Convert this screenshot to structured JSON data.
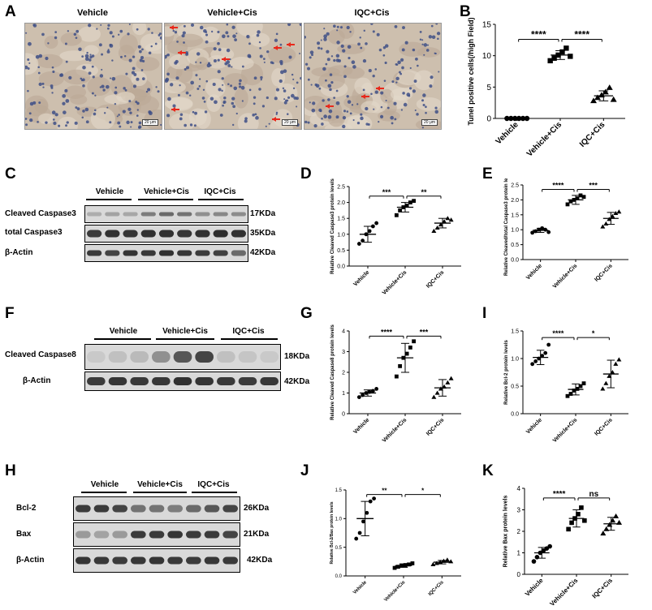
{
  "panels": {
    "A": {
      "letter": "A",
      "titles": [
        "Vehicle",
        "Vehicle+Cis",
        "IQC+Cis"
      ],
      "scale": "20 μm"
    },
    "B": {
      "letter": "B"
    },
    "C": {
      "letter": "C",
      "groups": [
        "Vehicle",
        "Vehicle+Cis",
        "IQC+Cis"
      ],
      "rows": [
        {
          "label": "Cleaved Caspase3",
          "kda": "17KDa"
        },
        {
          "label": "total Caspase3",
          "kda": "35KDa"
        },
        {
          "label": "β-Actin",
          "kda": "42KDa"
        }
      ]
    },
    "D": {
      "letter": "D"
    },
    "E": {
      "letter": "E"
    },
    "F": {
      "letter": "F",
      "groups": [
        "Vehicle",
        "Vehicle+Cis",
        "IQC+Cis"
      ],
      "rows": [
        {
          "label": "Cleaved Caspase8",
          "kda": "18KDa"
        },
        {
          "label": "β-Actin",
          "kda": "42KDa"
        }
      ]
    },
    "G": {
      "letter": "G"
    },
    "I": {
      "letter": "I"
    },
    "H": {
      "letter": "H",
      "groups": [
        "Vehicle",
        "Vehicle+Cis",
        "IQC+Cis"
      ],
      "rows": [
        {
          "label": "Bcl-2",
          "kda": "26KDa"
        },
        {
          "label": "Bax",
          "kda": "21KDa"
        },
        {
          "label": "β-Actin",
          "kda": "42KDa"
        }
      ]
    },
    "J": {
      "letter": "J"
    },
    "K": {
      "letter": "K"
    }
  },
  "colors": {
    "tissue": "#cdbfae",
    "nuclei": "#3e4f86",
    "arrow": "#e8281b",
    "blot_bg": "#d9d9d9",
    "band": "#2a2a2a"
  },
  "chart_data": [
    {
      "id": "B",
      "type": "scatter",
      "ylabel": "Tunel positive cells(/high Field)",
      "categories": [
        "Vehicle",
        "Vehicle+Cis",
        "IQC+Cis"
      ],
      "ylim": [
        0,
        15
      ],
      "yticks": [
        0,
        5,
        10,
        15
      ],
      "series": [
        {
          "values": [
            0,
            0,
            0,
            0,
            0,
            0
          ],
          "mean": 0,
          "sd": 0,
          "marker": "circle"
        },
        {
          "values": [
            9.2,
            9.6,
            10.1,
            10.6,
            11.2,
            9.9
          ],
          "mean": 10.1,
          "sd": 0.7,
          "marker": "square"
        },
        {
          "values": [
            2.8,
            3.3,
            3.7,
            4.2,
            4.9,
            3.0
          ],
          "mean": 3.6,
          "sd": 0.8,
          "marker": "triangle"
        }
      ],
      "sig": [
        {
          "from": 0,
          "to": 1,
          "label": "****",
          "y": 12.6
        },
        {
          "from": 1,
          "to": 2,
          "label": "****",
          "y": 12.6
        }
      ]
    },
    {
      "id": "D",
      "type": "scatter",
      "ylabel": "Relative Cleaved Caspase3 protein levels",
      "categories": [
        "Vehicle",
        "Vehicle+Cis",
        "IQC+Cis"
      ],
      "ylim": [
        0,
        2.5
      ],
      "yticks": [
        0.0,
        0.5,
        1.0,
        1.5,
        2.0,
        2.5
      ],
      "series": [
        {
          "values": [
            0.7,
            0.8,
            1.0,
            1.1,
            1.25,
            1.35
          ],
          "mean": 1.0,
          "sd": 0.25,
          "marker": "circle"
        },
        {
          "values": [
            1.6,
            1.75,
            1.85,
            1.9,
            2.0,
            2.05
          ],
          "mean": 1.85,
          "sd": 0.15,
          "marker": "square"
        },
        {
          "values": [
            1.1,
            1.2,
            1.3,
            1.4,
            1.5,
            1.45
          ],
          "mean": 1.35,
          "sd": 0.15,
          "marker": "triangle"
        }
      ],
      "sig": [
        {
          "from": 0,
          "to": 1,
          "label": "***",
          "y": 2.2
        },
        {
          "from": 1,
          "to": 2,
          "label": "**",
          "y": 2.2
        }
      ]
    },
    {
      "id": "E",
      "type": "scatter",
      "ylabel": "Relative Cleaved/total Caspase3 protein levels",
      "categories": [
        "Vehicle",
        "Vehicle+Cis",
        "IQC+Cis"
      ],
      "ylim": [
        0,
        2.5
      ],
      "yticks": [
        0.0,
        0.5,
        1.0,
        1.5,
        2.0,
        2.5
      ],
      "series": [
        {
          "values": [
            0.9,
            0.95,
            1.0,
            1.05,
            1.0,
            0.92
          ],
          "mean": 0.98,
          "sd": 0.07,
          "marker": "circle"
        },
        {
          "values": [
            1.85,
            1.95,
            2.0,
            2.05,
            2.15,
            2.1
          ],
          "mean": 2.0,
          "sd": 0.15,
          "marker": "square"
        },
        {
          "values": [
            1.1,
            1.2,
            1.35,
            1.45,
            1.55,
            1.6
          ],
          "mean": 1.38,
          "sd": 0.2,
          "marker": "triangle"
        }
      ],
      "sig": [
        {
          "from": 0,
          "to": 1,
          "label": "****",
          "y": 2.35
        },
        {
          "from": 1,
          "to": 2,
          "label": "***",
          "y": 2.35
        }
      ]
    },
    {
      "id": "G",
      "type": "scatter",
      "ylabel": "Relative Cleaved Caspase8 protein levels",
      "categories": [
        "Vehicle",
        "Vehicle+Cis",
        "IQC+Cis"
      ],
      "ylim": [
        0,
        4
      ],
      "yticks": [
        0,
        1,
        2,
        3,
        4
      ],
      "series": [
        {
          "values": [
            0.8,
            0.9,
            1.0,
            1.05,
            1.1,
            1.2
          ],
          "mean": 1.0,
          "sd": 0.15,
          "marker": "circle"
        },
        {
          "values": [
            1.8,
            2.3,
            2.7,
            2.9,
            3.2,
            3.5
          ],
          "mean": 2.7,
          "sd": 0.7,
          "marker": "square"
        },
        {
          "values": [
            0.8,
            1.0,
            1.2,
            1.3,
            1.5,
            1.7
          ],
          "mean": 1.25,
          "sd": 0.4,
          "marker": "triangle"
        }
      ],
      "sig": [
        {
          "from": 0,
          "to": 1,
          "label": "****",
          "y": 3.75
        },
        {
          "from": 1,
          "to": 2,
          "label": "***",
          "y": 3.75
        }
      ]
    },
    {
      "id": "I",
      "type": "scatter",
      "ylabel": "Relative Bcl-2 protein levels",
      "categories": [
        "Vehicle",
        "Vehicle+Cis",
        "IQC+Cis"
      ],
      "ylim": [
        0,
        1.5
      ],
      "yticks": [
        0.0,
        0.5,
        1.0,
        1.5
      ],
      "series": [
        {
          "values": [
            0.9,
            0.95,
            1.0,
            1.05,
            1.1,
            1.25
          ],
          "mean": 1.02,
          "sd": 0.13,
          "marker": "circle"
        },
        {
          "values": [
            0.32,
            0.36,
            0.42,
            0.45,
            0.5,
            0.55
          ],
          "mean": 0.44,
          "sd": 0.1,
          "marker": "square"
        },
        {
          "values": [
            0.45,
            0.55,
            0.68,
            0.75,
            0.9,
            0.98
          ],
          "mean": 0.72,
          "sd": 0.25,
          "marker": "triangle"
        }
      ],
      "sig": [
        {
          "from": 0,
          "to": 1,
          "label": "****",
          "y": 1.38
        },
        {
          "from": 1,
          "to": 2,
          "label": "*",
          "y": 1.38
        }
      ]
    },
    {
      "id": "J",
      "type": "scatter",
      "ylabel": "Relative Bcl-2/Bax protein levels",
      "categories": [
        "Vehicle",
        "Vehicle+Cis",
        "IQC+Cis"
      ],
      "ylim": [
        0,
        1.5
      ],
      "yticks": [
        0.0,
        0.5,
        1.0,
        1.5
      ],
      "series": [
        {
          "values": [
            0.65,
            0.75,
            0.95,
            1.1,
            1.3,
            1.35
          ],
          "mean": 1.0,
          "sd": 0.3,
          "marker": "circle"
        },
        {
          "values": [
            0.14,
            0.16,
            0.18,
            0.19,
            0.2,
            0.22
          ],
          "mean": 0.18,
          "sd": 0.03,
          "marker": "square"
        },
        {
          "values": [
            0.2,
            0.22,
            0.24,
            0.26,
            0.28,
            0.25
          ],
          "mean": 0.24,
          "sd": 0.03,
          "marker": "triangle"
        }
      ],
      "sig": [
        {
          "from": 0,
          "to": 1,
          "label": "**",
          "y": 1.42
        },
        {
          "from": 1,
          "to": 2,
          "label": "*",
          "y": 1.42
        }
      ]
    },
    {
      "id": "K",
      "type": "scatter",
      "ylabel": "Relative Bax protein levels",
      "categories": [
        "Vehicle",
        "Vehicle+Cis",
        "IQC+Cis"
      ],
      "ylim": [
        0,
        4
      ],
      "yticks": [
        0,
        1,
        2,
        3,
        4
      ],
      "series": [
        {
          "values": [
            0.6,
            0.8,
            1.0,
            1.1,
            1.2,
            1.3
          ],
          "mean": 1.0,
          "sd": 0.25,
          "marker": "circle"
        },
        {
          "values": [
            2.1,
            2.4,
            2.6,
            2.8,
            3.1,
            2.5
          ],
          "mean": 2.6,
          "sd": 0.4,
          "marker": "square"
        },
        {
          "values": [
            1.9,
            2.1,
            2.3,
            2.5,
            2.7,
            2.4
          ],
          "mean": 2.35,
          "sd": 0.3,
          "marker": "triangle"
        }
      ],
      "sig": [
        {
          "from": 0,
          "to": 1,
          "label": "****",
          "y": 3.55
        },
        {
          "from": 1,
          "to": 2,
          "label": "ns",
          "y": 3.55
        }
      ]
    }
  ]
}
